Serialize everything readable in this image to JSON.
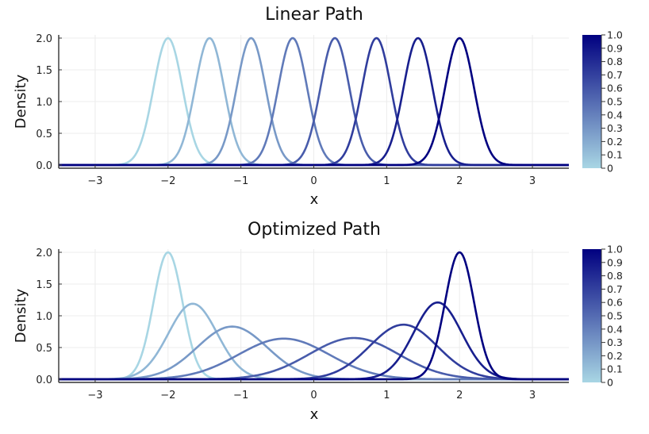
{
  "chart_data": [
    {
      "type": "line",
      "title": "Linear Path",
      "xlabel": "x",
      "ylabel": "Density",
      "xlim": [
        -3.5,
        3.5
      ],
      "ylim": [
        0,
        2.0
      ],
      "xticks": [
        "−3",
        "−2",
        "−1",
        "0",
        "1",
        "2",
        "3"
      ],
      "xtick_values": [
        -3,
        -2,
        -1,
        0,
        1,
        2,
        3
      ],
      "yticks": [
        "0.0",
        "0.5",
        "1.0",
        "1.5",
        "2.0"
      ],
      "ytick_values": [
        0,
        0.5,
        1.0,
        1.5,
        2.0
      ],
      "grid": true,
      "colorbar": {
        "ticks": [
          "0",
          "0.1",
          "0.2",
          "0.3",
          "0.4",
          "0.5",
          "0.6",
          "0.7",
          "0.8",
          "0.9",
          "1.0"
        ],
        "range": [
          0,
          1
        ],
        "colors": [
          "#a8d6e4",
          "#000080"
        ]
      },
      "series": [
        {
          "t": 0.0,
          "mean": -2.0,
          "peak": 2.0
        },
        {
          "t": 0.143,
          "mean": -1.43,
          "peak": 2.0
        },
        {
          "t": 0.286,
          "mean": -0.86,
          "peak": 2.0
        },
        {
          "t": 0.429,
          "mean": -0.29,
          "peak": 2.0
        },
        {
          "t": 0.571,
          "mean": 0.29,
          "peak": 2.0
        },
        {
          "t": 0.714,
          "mean": 0.86,
          "peak": 2.0
        },
        {
          "t": 0.857,
          "mean": 1.43,
          "peak": 2.0
        },
        {
          "t": 1.0,
          "mean": 2.0,
          "peak": 2.0
        }
      ]
    },
    {
      "type": "line",
      "title": "Optimized Path",
      "xlabel": "x",
      "ylabel": "Density",
      "xlim": [
        -3.5,
        3.5
      ],
      "ylim": [
        0,
        2.0
      ],
      "xticks": [
        "−3",
        "−2",
        "−1",
        "0",
        "1",
        "2",
        "3"
      ],
      "xtick_values": [
        -3,
        -2,
        -1,
        0,
        1,
        2,
        3
      ],
      "yticks": [
        "0.0",
        "0.5",
        "1.0",
        "1.5",
        "2.0"
      ],
      "ytick_values": [
        0,
        0.5,
        1.0,
        1.5,
        2.0
      ],
      "grid": true,
      "colorbar": {
        "ticks": [
          "0",
          "0.1",
          "0.2",
          "0.3",
          "0.4",
          "0.5",
          "0.6",
          "0.7",
          "0.8",
          "0.9",
          "1.0"
        ],
        "range": [
          0,
          1
        ],
        "colors": [
          "#a8d6e4",
          "#000080"
        ]
      },
      "series": [
        {
          "t": 0.0,
          "mean": -2.0,
          "peak": 2.0
        },
        {
          "t": 0.143,
          "mean": -1.66,
          "peak": 1.19
        },
        {
          "t": 0.286,
          "mean": -1.12,
          "peak": 0.83
        },
        {
          "t": 0.429,
          "mean": -0.41,
          "peak": 0.64
        },
        {
          "t": 0.571,
          "mean": 0.55,
          "peak": 0.65
        },
        {
          "t": 0.714,
          "mean": 1.23,
          "peak": 0.86
        },
        {
          "t": 0.857,
          "mean": 1.7,
          "peak": 1.21
        },
        {
          "t": 1.0,
          "mean": 2.0,
          "peak": 2.0
        }
      ]
    }
  ]
}
